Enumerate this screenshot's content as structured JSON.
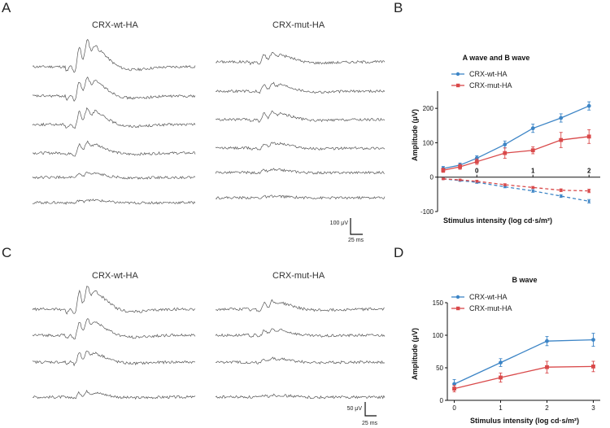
{
  "panels": {
    "A": {
      "letter": "A"
    },
    "B": {
      "letter": "B"
    },
    "C": {
      "letter": "C"
    },
    "D": {
      "letter": "D"
    }
  },
  "erg_top": {
    "left_title": "CRX-wt-HA",
    "right_title": "CRX-mut-HA",
    "wt_amplitudes": [
      1.0,
      0.72,
      0.62,
      0.42,
      0.18,
      0.12
    ],
    "mut_amplitudes": [
      0.35,
      0.32,
      0.3,
      0.22,
      0.12,
      0.06
    ],
    "scale_amp": "100 μV",
    "scale_time": "25 ms"
  },
  "erg_bottom": {
    "left_title": "CRX-wt-HA",
    "right_title": "CRX-mut-HA",
    "wt_amplitudes": [
      0.8,
      0.6,
      0.4,
      0.2
    ],
    "mut_amplitudes": [
      0.3,
      0.22,
      0.14,
      0.08
    ],
    "scale_amp": "50 μV",
    "scale_time": "25 ms"
  },
  "colors": {
    "wt": "#3d85c6",
    "mut": "#d9494a"
  },
  "chart_data": [
    {
      "type": "line",
      "title": "A wave and B wave",
      "xlabel": "Stimulus intensity (log cd·s/m²)",
      "ylabel": "Amplitude (μV)",
      "xlim": [
        -0.7,
        2.2
      ],
      "ylim": [
        -100,
        250
      ],
      "xticks": [
        0,
        1,
        2
      ],
      "yticks": [
        -100,
        0,
        100,
        200
      ],
      "x": [
        -0.6,
        -0.3,
        0,
        0.5,
        1.0,
        1.5,
        2.0
      ],
      "series": [
        {
          "name": "CRX-wt-HA",
          "wave": "b",
          "values": [
            25,
            35,
            55,
            95,
            142,
            172,
            207
          ],
          "err": [
            6,
            6,
            7,
            10,
            12,
            12,
            12
          ]
        },
        {
          "name": "CRX-mut-HA",
          "wave": "b",
          "values": [
            20,
            30,
            45,
            70,
            78,
            108,
            118
          ],
          "err": [
            6,
            7,
            8,
            15,
            10,
            22,
            20
          ]
        },
        {
          "name": "CRX-wt-HA",
          "wave": "a",
          "values": [
            -5,
            -10,
            -15,
            -28,
            -40,
            -55,
            -70
          ],
          "err": [
            2,
            2,
            3,
            3,
            4,
            4,
            5
          ]
        },
        {
          "name": "CRX-mut-HA",
          "wave": "a",
          "values": [
            -5,
            -8,
            -12,
            -22,
            -30,
            -38,
            -40
          ],
          "err": [
            2,
            2,
            3,
            3,
            3,
            4,
            5
          ]
        }
      ],
      "legend": [
        "CRX-wt-HA",
        "CRX-mut-HA"
      ]
    },
    {
      "type": "line",
      "title": "B wave",
      "xlabel": "Stimulus intensity (log cd·s/m²)",
      "ylabel": "Amplitude (μV)",
      "xlim": [
        -0.15,
        3.15
      ],
      "ylim": [
        0,
        150
      ],
      "xticks": [
        0,
        1,
        2,
        3
      ],
      "yticks": [
        0,
        50,
        100,
        150
      ],
      "x": [
        0,
        1,
        2,
        3
      ],
      "series": [
        {
          "name": "CRX-wt-HA",
          "values": [
            25,
            58,
            91,
            93
          ],
          "err": [
            7,
            6,
            7,
            10
          ]
        },
        {
          "name": "CRX-mut-HA",
          "values": [
            18,
            35,
            51,
            52
          ],
          "err": [
            5,
            7,
            9,
            8
          ]
        }
      ],
      "legend": [
        "CRX-wt-HA",
        "CRX-mut-HA"
      ]
    }
  ]
}
